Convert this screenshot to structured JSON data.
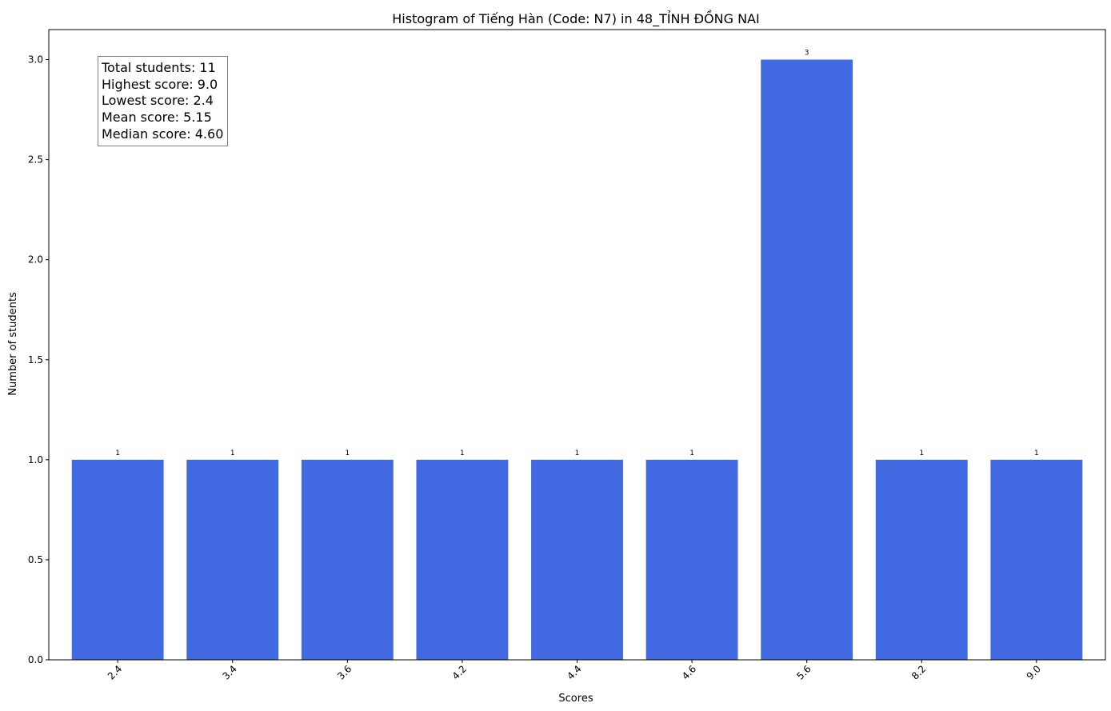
{
  "chart_data": {
    "type": "bar",
    "title": "Histogram of Tiếng Hàn (Code: N7) in 48_TỈNH ĐỒNG NAI",
    "xlabel": "Scores",
    "ylabel": "Number of students",
    "categories": [
      "2.4",
      "3.4",
      "3.6",
      "4.2",
      "4.4",
      "4.6",
      "5.6",
      "8.2",
      "9.0"
    ],
    "values": [
      1,
      1,
      1,
      1,
      1,
      1,
      3,
      1,
      1
    ],
    "bar_labels": [
      "1",
      "1",
      "1",
      "1",
      "1",
      "1",
      "3",
      "1",
      "1"
    ],
    "ylim": [
      0,
      3.15
    ],
    "yticks": [
      0.0,
      0.5,
      1.0,
      1.5,
      2.0,
      2.5,
      3.0
    ],
    "ytick_labels": [
      "0.0",
      "0.5",
      "1.0",
      "1.5",
      "2.0",
      "2.5",
      "3.0"
    ],
    "xtick_rotation": 45,
    "bar_color": "#4169E1",
    "grid": false,
    "legend": "none"
  },
  "stats": {
    "total": "Total students: 11",
    "highest": "Highest score: 9.0",
    "lowest": "Lowest score: 2.4",
    "mean": "Mean score: 5.15",
    "median": "Median score: 4.60"
  }
}
